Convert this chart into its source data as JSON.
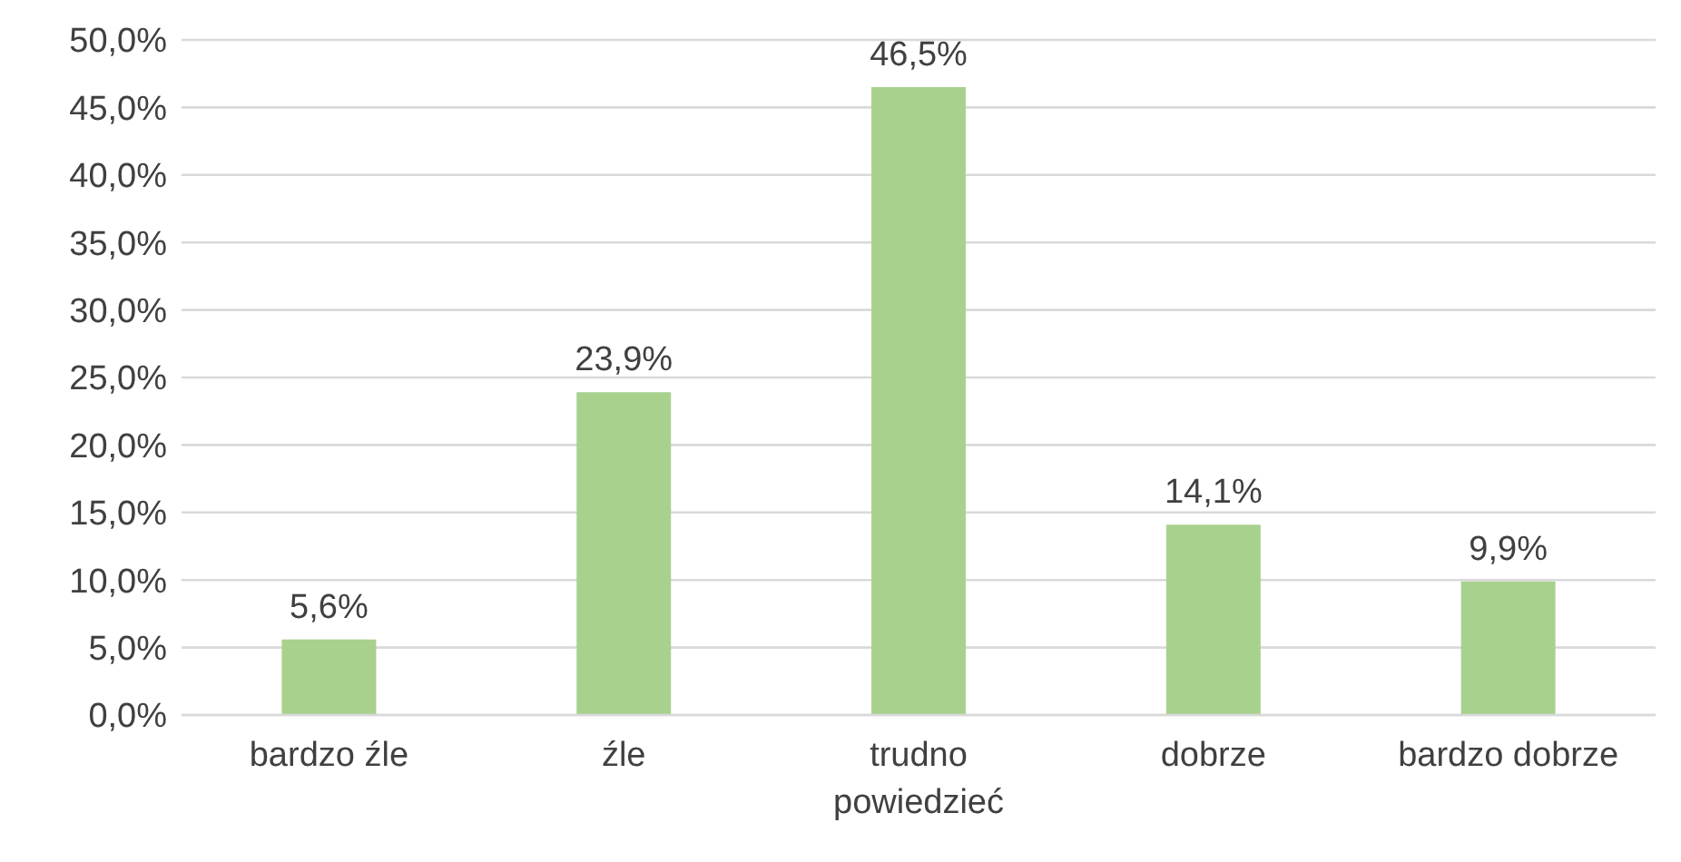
{
  "chart_data": {
    "type": "bar",
    "categories": [
      "bardzo źle",
      "źle",
      "trudno powiedzieć",
      "dobrze",
      "bardzo dobrze"
    ],
    "values": [
      5.6,
      23.9,
      46.5,
      14.1,
      9.9
    ],
    "value_labels": [
      "5,6%",
      "23,9%",
      "46,5%",
      "14,1%",
      "9,9%"
    ],
    "color": "#a9d18e",
    "ylim": [
      0,
      50
    ],
    "yticks": [
      {
        "value": 0,
        "label": "0,0%"
      },
      {
        "value": 5,
        "label": "5,0%"
      },
      {
        "value": 10,
        "label": "10,0%"
      },
      {
        "value": 15,
        "label": "15,0%"
      },
      {
        "value": 20,
        "label": "20,0%"
      },
      {
        "value": 25,
        "label": "25,0%"
      },
      {
        "value": 30,
        "label": "30,0%"
      },
      {
        "value": 35,
        "label": "35,0%"
      },
      {
        "value": 40,
        "label": "40,0%"
      },
      {
        "value": 45,
        "label": "45,0%"
      },
      {
        "value": 50,
        "label": "50,0%"
      }
    ],
    "grid": "y",
    "legend": false
  }
}
